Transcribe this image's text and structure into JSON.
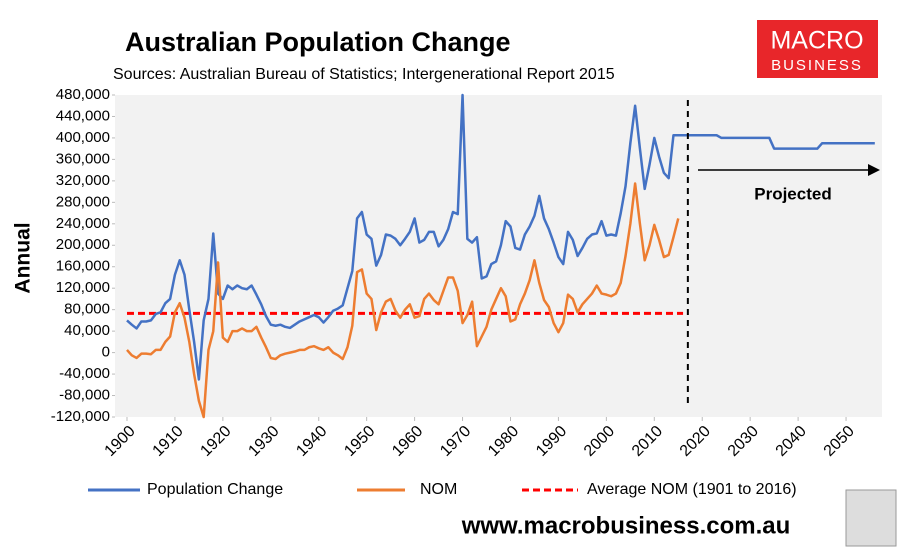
{
  "chart_data": {
    "type": "line",
    "title": "Australian Population Change",
    "subtitle": "Sources: Australian Bureau of Statistics; Intergenerational Report 2015",
    "y_label": "Annual",
    "logo": {
      "top": "MACRO",
      "bottom": "BUSINESS"
    },
    "website": "www.macrobusiness.com.au",
    "projection": {
      "label": "Projected",
      "start": 2017
    },
    "x": [
      1900,
      1901,
      1902,
      1903,
      1904,
      1905,
      1906,
      1907,
      1908,
      1909,
      1910,
      1911,
      1912,
      1913,
      1914,
      1915,
      1916,
      1917,
      1918,
      1919,
      1920,
      1921,
      1922,
      1923,
      1924,
      1925,
      1926,
      1927,
      1928,
      1929,
      1930,
      1931,
      1932,
      1933,
      1934,
      1935,
      1936,
      1937,
      1938,
      1939,
      1940,
      1941,
      1942,
      1943,
      1944,
      1945,
      1946,
      1947,
      1948,
      1949,
      1950,
      1951,
      1952,
      1953,
      1954,
      1955,
      1956,
      1957,
      1958,
      1959,
      1960,
      1961,
      1962,
      1963,
      1964,
      1965,
      1966,
      1967,
      1968,
      1969,
      1970,
      1971,
      1972,
      1973,
      1974,
      1975,
      1976,
      1977,
      1978,
      1979,
      1980,
      1981,
      1982,
      1983,
      1984,
      1985,
      1986,
      1987,
      1988,
      1989,
      1990,
      1991,
      1992,
      1993,
      1994,
      1995,
      1996,
      1997,
      1998,
      1999,
      2000,
      2001,
      2002,
      2003,
      2004,
      2005,
      2006,
      2007,
      2008,
      2009,
      2010,
      2011,
      2012,
      2013,
      2014,
      2015,
      2016,
      2017,
      2018,
      2019,
      2020,
      2021,
      2022,
      2023,
      2024,
      2025,
      2026,
      2027,
      2028,
      2029,
      2030,
      2031,
      2032,
      2033,
      2034,
      2035,
      2036,
      2037,
      2038,
      2039,
      2040,
      2041,
      2042,
      2043,
      2044,
      2045,
      2046,
      2047,
      2048,
      2049,
      2050,
      2051,
      2052,
      2053,
      2054,
      2055,
      2056
    ],
    "series": [
      {
        "name": "Population Change",
        "color": "#4472c4",
        "values": [
          60000,
          52000,
          45000,
          58000,
          58000,
          60000,
          72000,
          75000,
          92000,
          100000,
          145000,
          172000,
          145000,
          80000,
          20000,
          -50000,
          60000,
          100000,
          222000,
          110000,
          100000,
          125000,
          118000,
          125000,
          120000,
          118000,
          125000,
          108000,
          90000,
          68000,
          52000,
          50000,
          52000,
          48000,
          46000,
          52000,
          58000,
          62000,
          66000,
          70000,
          66000,
          56000,
          66000,
          78000,
          82000,
          88000,
          120000,
          152000,
          250000,
          262000,
          220000,
          212000,
          162000,
          182000,
          220000,
          218000,
          212000,
          200000,
          212000,
          225000,
          250000,
          205000,
          210000,
          225000,
          225000,
          198000,
          210000,
          230000,
          262000,
          258000,
          480000,
          212000,
          205000,
          215000,
          138000,
          142000,
          165000,
          170000,
          200000,
          245000,
          235000,
          195000,
          192000,
          220000,
          235000,
          255000,
          292000,
          250000,
          230000,
          205000,
          178000,
          165000,
          225000,
          210000,
          180000,
          195000,
          212000,
          220000,
          222000,
          245000,
          218000,
          220000,
          218000,
          260000,
          310000,
          390000,
          460000,
          380000,
          305000,
          350000,
          400000,
          365000,
          335000,
          325000,
          405000,
          405000,
          405000,
          405000,
          405000,
          405000,
          405000,
          405000,
          405000,
          405000,
          400000,
          400000,
          400000,
          400000,
          400000,
          400000,
          400000,
          400000,
          400000,
          400000,
          400000,
          380000,
          380000,
          380000,
          380000,
          380000,
          380000,
          380000,
          380000,
          380000,
          380000,
          390000,
          390000,
          390000,
          390000,
          390000,
          390000,
          390000,
          390000,
          390000,
          390000,
          390000,
          390000
        ]
      },
      {
        "name": "NOM",
        "color": "#ed7d31",
        "values": [
          5000,
          -5000,
          -10000,
          -2000,
          -2000,
          -3000,
          5000,
          5000,
          20000,
          30000,
          75000,
          92000,
          65000,
          20000,
          -40000,
          -90000,
          -120000,
          5000,
          40000,
          168000,
          28000,
          20000,
          40000,
          40000,
          45000,
          40000,
          40000,
          48000,
          28000,
          10000,
          -10000,
          -12000,
          -5000,
          -2000,
          0,
          2000,
          5000,
          5000,
          10000,
          12000,
          8000,
          5000,
          10000,
          0,
          -5000,
          -12000,
          10000,
          50000,
          150000,
          155000,
          110000,
          100000,
          42000,
          75000,
          95000,
          100000,
          78000,
          65000,
          80000,
          90000,
          65000,
          68000,
          100000,
          110000,
          98000,
          90000,
          115000,
          140000,
          140000,
          115000,
          55000,
          70000,
          95000,
          12000,
          30000,
          48000,
          80000,
          100000,
          120000,
          105000,
          58000,
          62000,
          90000,
          110000,
          135000,
          172000,
          130000,
          98000,
          85000,
          55000,
          38000,
          55000,
          108000,
          100000,
          75000,
          90000,
          100000,
          110000,
          125000,
          110000,
          108000,
          105000,
          110000,
          130000,
          180000,
          240000,
          315000,
          240000,
          172000,
          200000,
          238000,
          210000,
          178000,
          182000,
          215000,
          250000,
          null,
          null,
          null,
          null,
          null,
          null,
          null,
          null,
          null,
          null,
          null,
          null,
          null,
          null,
          null,
          null,
          null,
          null,
          null,
          null,
          null,
          null,
          null,
          null,
          null,
          null,
          null,
          null,
          null,
          null,
          null,
          null,
          null,
          null,
          null,
          null,
          null,
          null,
          null,
          null,
          null
        ]
      }
    ],
    "reference_line": {
      "name": "Average NOM (1901 to 2016)",
      "color": "#ff0000",
      "value": 73000,
      "x_range": [
        1900,
        2016
      ]
    },
    "xlim": [
      1897.5,
      2057.5
    ],
    "xticks": [
      1900,
      1910,
      1920,
      1930,
      1940,
      1950,
      1960,
      1970,
      1980,
      1990,
      2000,
      2010,
      2020,
      2030,
      2040,
      2050
    ],
    "ylim": [
      -120000,
      480000
    ],
    "yticks": [
      {
        "value": -120000,
        "label": "-120,000"
      },
      {
        "value": -80000,
        "label": "-80,000"
      },
      {
        "value": -40000,
        "label": "-40,000"
      },
      0,
      {
        "value": 40000,
        "label": "40,000"
      },
      {
        "value": 80000,
        "label": "80,000"
      },
      {
        "value": 120000,
        "label": "120,000"
      },
      {
        "value": 160000,
        "label": "160,000"
      },
      {
        "value": 200000,
        "label": "200,000"
      },
      {
        "value": 240000,
        "label": "240,000"
      },
      {
        "value": 280000,
        "label": "280,000"
      },
      {
        "value": 320000,
        "label": "320,000"
      },
      {
        "value": 360000,
        "label": "360,000"
      },
      {
        "value": 400000,
        "label": "400,000"
      },
      {
        "value": 440000,
        "label": "440,000"
      },
      {
        "value": 480000,
        "label": "480,000"
      }
    ],
    "legend": "bottom",
    "grid": false
  }
}
